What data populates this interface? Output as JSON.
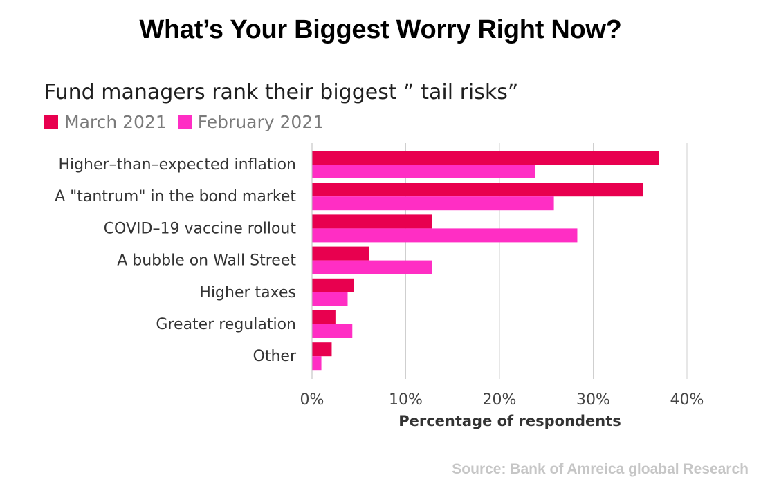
{
  "headline": "What’s Your Biggest Worry Right Now?",
  "source": "Source: Bank of Amreica gloabal Research",
  "chart_data": {
    "type": "bar",
    "orientation": "horizontal",
    "title": "Fund managers rank their biggest ” tail risks”",
    "xlabel": "Percentage of respondents",
    "ylabel": "",
    "categories": [
      "Higher–than–expected inflation",
      "A \"tantrum\" in the bond market",
      "COVID–19 vaccine rollout",
      "A bubble on Wall Street",
      "Higher taxes",
      "Greater regulation",
      "Other"
    ],
    "series": [
      {
        "name": "March 2021",
        "color": "#e8004f",
        "values": [
          37,
          35.3,
          12.8,
          6.1,
          4.5,
          2.5,
          2.1
        ]
      },
      {
        "name": "February 2021",
        "color": "#ff2ec4",
        "values": [
          23.8,
          25.8,
          28.3,
          12.8,
          3.8,
          4.3,
          1
        ]
      }
    ],
    "xlim": [
      0,
      40
    ],
    "xticks": [
      "0%",
      "10%",
      "20%",
      "30%",
      "40%"
    ],
    "grid": true,
    "legend_position": "top-left"
  }
}
